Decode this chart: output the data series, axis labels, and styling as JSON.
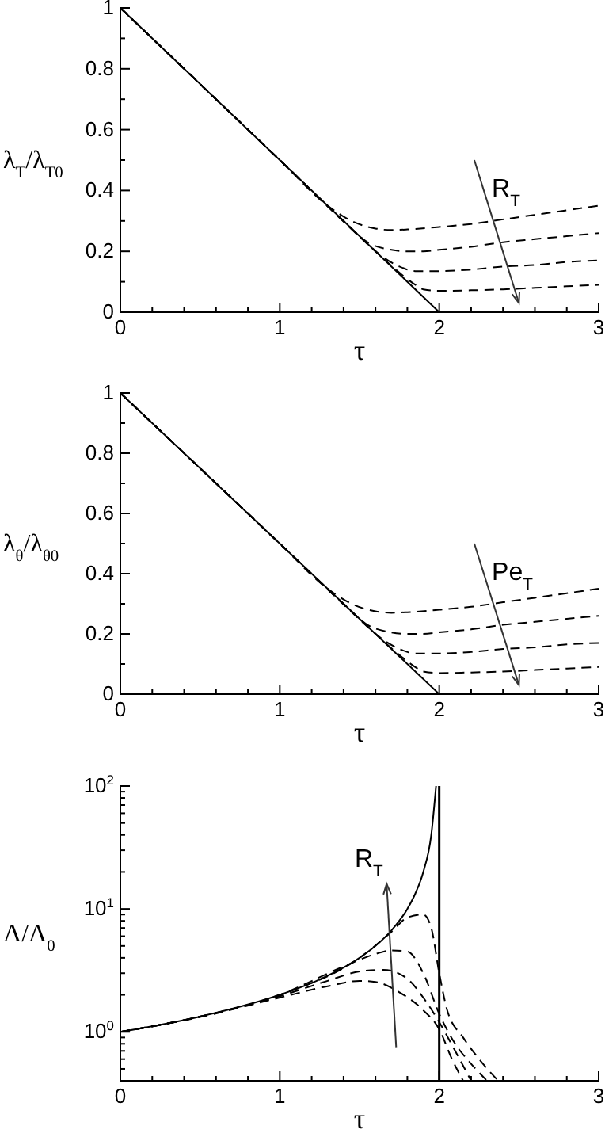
{
  "chart_data": [
    {
      "type": "line",
      "ylabel": "λ$_{T}$/λ$_{T0}$",
      "xlabel": "τ",
      "xlim": [
        0,
        3
      ],
      "ylim": [
        0,
        1
      ],
      "xticks": [
        0,
        {
          "value": 0.2,
          "label": null
        },
        {
          "value": 0.4,
          "label": null
        },
        {
          "value": 0.6,
          "label": null
        },
        {
          "value": 0.8,
          "label": null
        },
        1,
        {
          "value": 1.2,
          "label": null
        },
        {
          "value": 1.4,
          "label": null
        },
        {
          "value": 1.6,
          "label": null
        },
        {
          "value": 1.8,
          "label": null
        },
        2,
        {
          "value": 2.2,
          "label": null
        },
        {
          "value": 2.4,
          "label": null
        },
        {
          "value": 2.6,
          "label": null
        },
        {
          "value": 2.8,
          "label": null
        },
        3
      ],
      "yticks": [
        0,
        {
          "value": 0.1,
          "label": null
        },
        0.2,
        {
          "value": 0.3,
          "label": null
        },
        0.4,
        {
          "value": 0.5,
          "label": null
        },
        0.6,
        {
          "value": 0.7,
          "label": null
        },
        0.8,
        {
          "value": 0.9,
          "label": null
        },
        1
      ],
      "annotations": [
        "R$_{T}$"
      ],
      "series": [
        {
          "color": "#000000",
          "line_style": "solid",
          "x": [
            0,
            2
          ],
          "values": [
            1,
            0
          ]
        },
        {
          "color": "#000000",
          "line_style": "dashed",
          "x": [
            0,
            1,
            1.3,
            1.45,
            1.6,
            1.7,
            1.8,
            2,
            2.2,
            2.4,
            2.6,
            2.8,
            3
          ],
          "values": [
            1,
            0.5,
            0.35,
            0.3,
            0.275,
            0.27,
            0.272,
            0.28,
            0.29,
            0.305,
            0.32,
            0.335,
            0.35
          ]
        },
        {
          "color": "#000000",
          "line_style": "dashed",
          "x": [
            0,
            1,
            1.4,
            1.55,
            1.7,
            1.8,
            1.9,
            2,
            2.2,
            2.4,
            2.6,
            2.8,
            3
          ],
          "values": [
            1,
            0.5,
            0.3,
            0.23,
            0.205,
            0.2,
            0.2,
            0.205,
            0.215,
            0.23,
            0.24,
            0.25,
            0.26
          ]
        },
        {
          "color": "#000000",
          "line_style": "dashed",
          "x": [
            0,
            1,
            1.5,
            1.65,
            1.75,
            1.85,
            2,
            2.2,
            2.4,
            2.6,
            2.8,
            3
          ],
          "values": [
            1,
            0.5,
            0.25,
            0.18,
            0.15,
            0.135,
            0.135,
            0.14,
            0.15,
            0.155,
            0.165,
            0.17
          ]
        },
        {
          "color": "#000000",
          "line_style": "dashed",
          "x": [
            0,
            1,
            1.6,
            1.75,
            1.85,
            1.9,
            2,
            2.2,
            2.4,
            2.6,
            2.8,
            3
          ],
          "values": [
            1,
            0.5,
            0.2,
            0.13,
            0.09,
            0.075,
            0.07,
            0.072,
            0.075,
            0.08,
            0.085,
            0.09
          ]
        }
      ]
    },
    {
      "type": "line",
      "ylabel": "λ$_{θ}$/λ$_{θ0}$",
      "xlabel": "τ",
      "xlim": [
        0,
        3
      ],
      "ylim": [
        0,
        1
      ],
      "xticks": [
        0,
        {
          "value": 0.2,
          "label": null
        },
        {
          "value": 0.4,
          "label": null
        },
        {
          "value": 0.6,
          "label": null
        },
        {
          "value": 0.8,
          "label": null
        },
        1,
        {
          "value": 1.2,
          "label": null
        },
        {
          "value": 1.4,
          "label": null
        },
        {
          "value": 1.6,
          "label": null
        },
        {
          "value": 1.8,
          "label": null
        },
        2,
        {
          "value": 2.2,
          "label": null
        },
        {
          "value": 2.4,
          "label": null
        },
        {
          "value": 2.6,
          "label": null
        },
        {
          "value": 2.8,
          "label": null
        },
        3
      ],
      "yticks": [
        0,
        {
          "value": 0.1,
          "label": null
        },
        0.2,
        {
          "value": 0.3,
          "label": null
        },
        0.4,
        {
          "value": 0.5,
          "label": null
        },
        0.6,
        {
          "value": 0.7,
          "label": null
        },
        0.8,
        {
          "value": 0.9,
          "label": null
        },
        1
      ],
      "annotations": [
        "Pe$_{T}$"
      ],
      "series": [
        {
          "color": "#000000",
          "line_style": "solid",
          "x": [
            0,
            2
          ],
          "values": [
            1,
            0
          ]
        },
        {
          "color": "#000000",
          "line_style": "dashed",
          "x": [
            0,
            1,
            1.3,
            1.45,
            1.6,
            1.7,
            1.8,
            2,
            2.2,
            2.4,
            2.6,
            2.8,
            3
          ],
          "values": [
            1,
            0.5,
            0.35,
            0.3,
            0.275,
            0.27,
            0.272,
            0.28,
            0.29,
            0.305,
            0.32,
            0.335,
            0.35
          ]
        },
        {
          "color": "#000000",
          "line_style": "dashed",
          "x": [
            0,
            1,
            1.4,
            1.55,
            1.7,
            1.8,
            1.9,
            2,
            2.2,
            2.4,
            2.6,
            2.8,
            3
          ],
          "values": [
            1,
            0.5,
            0.3,
            0.23,
            0.205,
            0.2,
            0.2,
            0.205,
            0.215,
            0.23,
            0.24,
            0.25,
            0.26
          ]
        },
        {
          "color": "#000000",
          "line_style": "dashed",
          "x": [
            0,
            1,
            1.5,
            1.65,
            1.75,
            1.85,
            2,
            2.2,
            2.4,
            2.6,
            2.8,
            3
          ],
          "values": [
            1,
            0.5,
            0.25,
            0.18,
            0.15,
            0.135,
            0.135,
            0.14,
            0.15,
            0.155,
            0.165,
            0.17
          ]
        },
        {
          "color": "#000000",
          "line_style": "dashed",
          "x": [
            0,
            1,
            1.6,
            1.75,
            1.85,
            1.9,
            2,
            2.2,
            2.4,
            2.6,
            2.8,
            3
          ],
          "values": [
            1,
            0.5,
            0.2,
            0.13,
            0.09,
            0.075,
            0.07,
            0.072,
            0.075,
            0.08,
            0.085,
            0.09
          ]
        }
      ]
    },
    {
      "type": "line",
      "ylabel": "Λ/Λ$_{0}$",
      "xlabel": "τ",
      "xlim": [
        0,
        3
      ],
      "ylim": [
        0.4,
        100
      ],
      "log": "y",
      "xticks": [
        0,
        {
          "value": 0.2,
          "label": null
        },
        {
          "value": 0.4,
          "label": null
        },
        {
          "value": 0.6,
          "label": null
        },
        {
          "value": 0.8,
          "label": null
        },
        1,
        {
          "value": 1.2,
          "label": null
        },
        {
          "value": 1.4,
          "label": null
        },
        {
          "value": 1.6,
          "label": null
        },
        {
          "value": 1.8,
          "label": null
        },
        2,
        {
          "value": 2.2,
          "label": null
        },
        {
          "value": 2.4,
          "label": null
        },
        {
          "value": 2.6,
          "label": null
        },
        {
          "value": 2.8,
          "label": null
        },
        3
      ],
      "yticks": [
        {
          "value": 0.5,
          "label": null
        },
        {
          "value": 0.6,
          "label": null
        },
        {
          "value": 0.7,
          "label": null
        },
        {
          "value": 0.8,
          "label": null
        },
        {
          "value": 0.9,
          "label": null
        },
        {
          "value": 1,
          "label": "10$^{0}$"
        },
        {
          "value": 2,
          "label": null
        },
        {
          "value": 3,
          "label": null
        },
        {
          "value": 4,
          "label": null
        },
        {
          "value": 5,
          "label": null
        },
        {
          "value": 6,
          "label": null
        },
        {
          "value": 7,
          "label": null
        },
        {
          "value": 8,
          "label": null
        },
        {
          "value": 9,
          "label": null
        },
        {
          "value": 10,
          "label": "10$^{1}$"
        },
        {
          "value": 20,
          "label": null
        },
        {
          "value": 30,
          "label": null
        },
        {
          "value": 40,
          "label": null
        },
        {
          "value": 50,
          "label": null
        },
        {
          "value": 60,
          "label": null
        },
        {
          "value": 70,
          "label": null
        },
        {
          "value": 80,
          "label": null
        },
        {
          "value": 90,
          "label": null
        },
        {
          "value": 100,
          "label": "10$^{2}$"
        }
      ],
      "annotations": [
        "R$_{T}$"
      ],
      "ref_lines": [
        {
          "axis": "x",
          "value": 2,
          "color": "#000000",
          "line_style": "solid"
        }
      ],
      "series": [
        {
          "color": "#000000",
          "line_style": "solid",
          "x": [
            0,
            0.5,
            1,
            1.25,
            1.5,
            1.6,
            1.7,
            1.8,
            1.85,
            1.9,
            1.95,
            1.98
          ],
          "values": [
            1,
            1.333,
            2,
            2.667,
            4,
            5,
            6.667,
            10,
            13.33,
            20,
            40,
            100
          ]
        },
        {
          "color": "#000000",
          "line_style": "dashed",
          "x": [
            0,
            0.5,
            1,
            1.5,
            1.7,
            1.8,
            1.9,
            1.95,
            2,
            2.05,
            2.15,
            2.25,
            2.37
          ],
          "values": [
            1,
            1.33,
            2,
            4,
            6.5,
            8.5,
            9,
            7,
            3,
            1.5,
            0.9,
            0.6,
            0.4
          ]
        },
        {
          "color": "#000000",
          "line_style": "dashed",
          "x": [
            0,
            0.5,
            1,
            1.4,
            1.6,
            1.7,
            1.8,
            1.9,
            2,
            2.1,
            2.2,
            2.3
          ],
          "values": [
            1,
            1.33,
            2,
            3.4,
            4.3,
            4.6,
            4.5,
            3,
            1.4,
            0.8,
            0.55,
            0.4
          ]
        },
        {
          "color": "#000000",
          "line_style": "dashed",
          "x": [
            0,
            0.5,
            1,
            1.3,
            1.5,
            1.65,
            1.8,
            1.9,
            2,
            2.1,
            2.2
          ],
          "values": [
            1,
            1.33,
            1.95,
            2.6,
            3.1,
            3.2,
            2.7,
            1.9,
            1.2,
            0.7,
            0.4
          ]
        },
        {
          "color": "#000000",
          "line_style": "dashed",
          "x": [
            0,
            0.5,
            1,
            1.3,
            1.5,
            1.6,
            1.75,
            1.9,
            2,
            2.08,
            2.15
          ],
          "values": [
            1,
            1.32,
            1.9,
            2.35,
            2.6,
            2.55,
            2.1,
            1.5,
            1.05,
            0.6,
            0.4
          ]
        }
      ]
    }
  ]
}
